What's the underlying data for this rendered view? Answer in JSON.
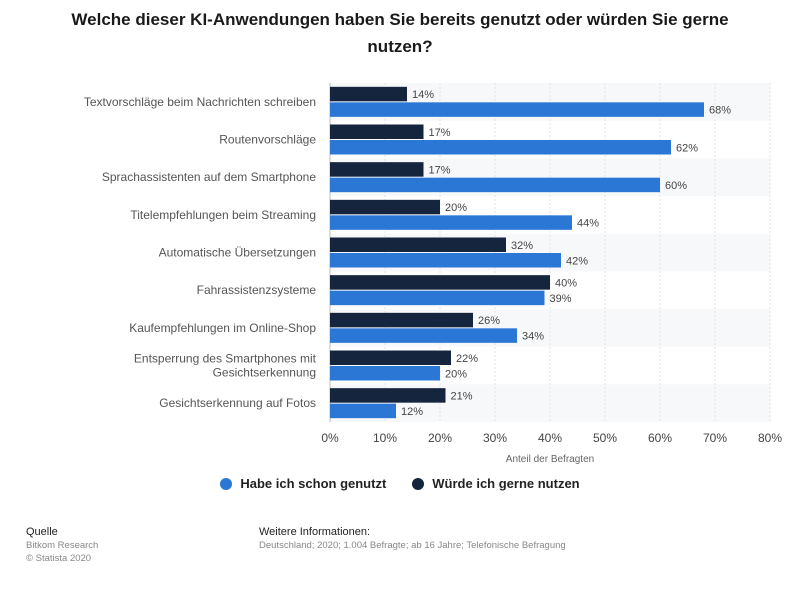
{
  "chart_data": {
    "type": "bar",
    "orientation": "horizontal",
    "title": "Welche dieser KI-Anwendungen haben Sie bereits genutzt oder würden Sie gerne nutzen?",
    "categories": [
      [
        "Textvorschläge beim Nachrichten schreiben"
      ],
      [
        "Routenvorschläge"
      ],
      [
        "Sprachassistenten auf dem Smartphone"
      ],
      [
        "Titelempfehlungen beim Streaming"
      ],
      [
        "Automatische Übersetzungen"
      ],
      [
        "Fahrassistenzsysteme"
      ],
      [
        "Kaufempfehlungen im Online-Shop"
      ],
      [
        "Entsperrung des Smartphones mit",
        "Gesichtserkennung"
      ],
      [
        "Gesichtserkennung auf Fotos"
      ]
    ],
    "series": [
      {
        "name": "Würde ich gerne nutzen",
        "color": "#14253d",
        "values": [
          14,
          17,
          17,
          20,
          32,
          40,
          26,
          22,
          21
        ]
      },
      {
        "name": "Habe ich schon genutzt",
        "color": "#2b77d6",
        "values": [
          68,
          62,
          60,
          44,
          42,
          39,
          34,
          20,
          12
        ]
      }
    ],
    "xlabel": "Anteil der Befragten",
    "xlim": [
      0,
      80
    ],
    "xticks": [
      "0%",
      "10%",
      "20%",
      "30%",
      "40%",
      "50%",
      "60%",
      "70%",
      "80%"
    ],
    "value_suffix": "%",
    "legend": [
      {
        "label": "Habe ich schon genutzt",
        "color": "#2b77d6"
      },
      {
        "label": "Würde ich gerne nutzen",
        "color": "#14253d"
      }
    ]
  },
  "footer": {
    "source_heading": "Quelle",
    "source_lines": [
      "Bitkom Research",
      "© Statista 2020"
    ],
    "info_heading": "Weitere Informationen:",
    "info_text": "Deutschland; 2020; 1.004 Befragte; ab 16 Jahre; Telefonische Befragung"
  }
}
